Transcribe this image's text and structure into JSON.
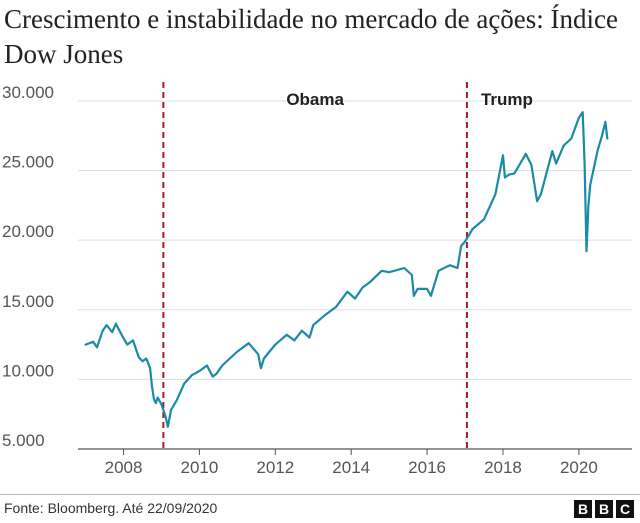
{
  "title": "Crescimento e instabilidade no mercado de ações: Índice Dow Jones",
  "source": "Fonte: Bloomberg. Até 22/09/2020",
  "logo": [
    "B",
    "B",
    "C"
  ],
  "colors": {
    "line": "#1a8aa6",
    "marker": "#a61d1d",
    "grid": "#dddddd",
    "axis": "#555555"
  },
  "chart_data": {
    "type": "line",
    "title": "Crescimento e instabilidade no mercado de ações: Índice Dow Jones",
    "xlim": [
      2006.8,
      2021.4
    ],
    "ylim": [
      5000,
      30500
    ],
    "grid": true,
    "x_ticks": [
      {
        "value": 2008,
        "label": "2008"
      },
      {
        "value": 2010,
        "label": "2010"
      },
      {
        "value": 2012,
        "label": "2012"
      },
      {
        "value": 2014,
        "label": "2014"
      },
      {
        "value": 2016,
        "label": "2016"
      },
      {
        "value": 2018,
        "label": "2018"
      },
      {
        "value": 2020,
        "label": "2020"
      }
    ],
    "y_ticks": [
      {
        "value": 5000,
        "label": "5.000"
      },
      {
        "value": 10000,
        "label": "10.000"
      },
      {
        "value": 15000,
        "label": "15.000"
      },
      {
        "value": 20000,
        "label": "20.000"
      },
      {
        "value": 25000,
        "label": "25.000"
      },
      {
        "value": 30000,
        "label": "30.000"
      }
    ],
    "annotations": [
      {
        "x": 2009.05,
        "label": "Obama"
      },
      {
        "x": 2017.05,
        "label": "Trump"
      }
    ],
    "x": [
      2007.0,
      2007.2,
      2007.3,
      2007.45,
      2007.55,
      2007.7,
      2007.8,
      2007.95,
      2008.1,
      2008.25,
      2008.4,
      2008.5,
      2008.6,
      2008.7,
      2008.75,
      2008.8,
      2008.85,
      2008.9,
      2009.0,
      2009.1,
      2009.17,
      2009.25,
      2009.4,
      2009.6,
      2009.8,
      2010.0,
      2010.2,
      2010.35,
      2010.45,
      2010.6,
      2010.8,
      2011.0,
      2011.3,
      2011.55,
      2011.62,
      2011.7,
      2011.85,
      2012.0,
      2012.3,
      2012.5,
      2012.7,
      2012.9,
      2013.0,
      2013.3,
      2013.6,
      2013.9,
      2014.1,
      2014.3,
      2014.5,
      2014.8,
      2015.0,
      2015.4,
      2015.6,
      2015.65,
      2015.75,
      2016.0,
      2016.1,
      2016.3,
      2016.6,
      2016.8,
      2016.9,
      2017.0,
      2017.2,
      2017.5,
      2017.8,
      2018.0,
      2018.05,
      2018.15,
      2018.3,
      2018.6,
      2018.75,
      2018.9,
      2019.0,
      2019.3,
      2019.4,
      2019.6,
      2019.8,
      2020.0,
      2020.1,
      2020.15,
      2020.2,
      2020.25,
      2020.3,
      2020.5,
      2020.6,
      2020.7,
      2020.75
    ],
    "series": [
      {
        "values": [
          12500,
          12700,
          12300,
          13500,
          13900,
          13400,
          14000,
          13200,
          12500,
          12800,
          11600,
          11300,
          11500,
          10800,
          9500,
          8600,
          8300,
          8700,
          8200,
          7400,
          6600,
          7800,
          8500,
          9700,
          10300,
          10600,
          11000,
          10200,
          10400,
          11000,
          11500,
          12000,
          12600,
          11800,
          10800,
          11500,
          12000,
          12500,
          13200,
          12800,
          13500,
          13000,
          13900,
          14600,
          15200,
          16300,
          15800,
          16600,
          17000,
          17800,
          17700,
          18000,
          17500,
          16000,
          16500,
          16500,
          16000,
          17800,
          18200,
          18000,
          19600,
          19900,
          20800,
          21500,
          23300,
          26100,
          24500,
          24700,
          24800,
          26200,
          25400,
          22800,
          23300,
          26400,
          25500,
          26800,
          27300,
          28800,
          29200,
          25500,
          19200,
          22500,
          24000,
          26500,
          27400,
          28500,
          27300
        ]
      }
    ]
  }
}
